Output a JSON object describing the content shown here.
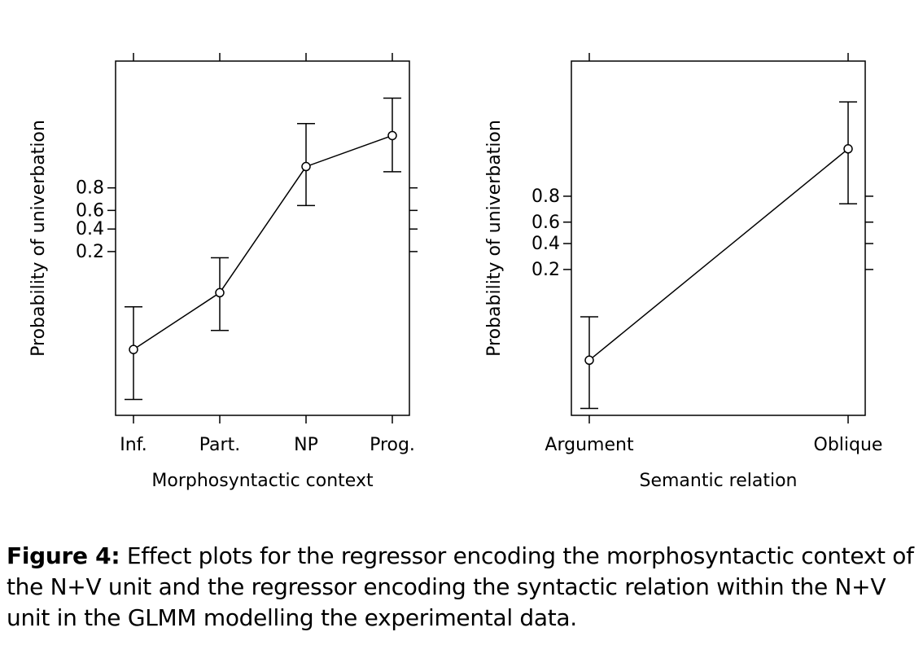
{
  "chart_data": [
    {
      "type": "line",
      "title": "",
      "xlabel": "Morphosyntactic context",
      "ylabel": "Probability of univerbation",
      "categories": [
        "Inf.",
        "Part.",
        "NP",
        "Prog."
      ],
      "y_scale": "logit",
      "y_ticks": [
        0.2,
        0.4,
        0.6,
        0.8
      ],
      "y_tick_labels": [
        "0.2",
        "0.4",
        "0.6",
        "0.8"
      ],
      "ylim": [
        0.0002,
        0.999
      ],
      "series": [
        {
          "values": [
            0.0035,
            0.04,
            0.91,
            0.975
          ],
          "lower": [
            0.0004,
            0.008,
            0.65,
            0.89
          ],
          "upper": [
            0.022,
            0.16,
            0.985,
            0.995
          ]
        }
      ],
      "grid": false
    },
    {
      "type": "line",
      "title": "",
      "xlabel": "Semantic relation",
      "ylabel": "Probability of univerbation",
      "categories": [
        "Argument",
        "Oblique"
      ],
      "y_scale": "logit",
      "y_ticks": [
        0.2,
        0.4,
        0.6,
        0.8
      ],
      "y_tick_labels": [
        "0.2",
        "0.4",
        "0.6",
        "0.8"
      ],
      "ylim": [
        0.001,
        0.9985
      ],
      "series": [
        {
          "values": [
            0.008,
            0.96
          ],
          "lower": [
            0.0013,
            0.75
          ],
          "upper": [
            0.04,
            0.993
          ]
        }
      ],
      "grid": false
    }
  ],
  "caption": {
    "label": "Figure 4:",
    "text": "Effect plots for the regressor encoding the morphosyntactic context of the N+V unit and the regressor encoding the syntactic relation within the N+V unit in the GLMM modelling the experimental data."
  }
}
